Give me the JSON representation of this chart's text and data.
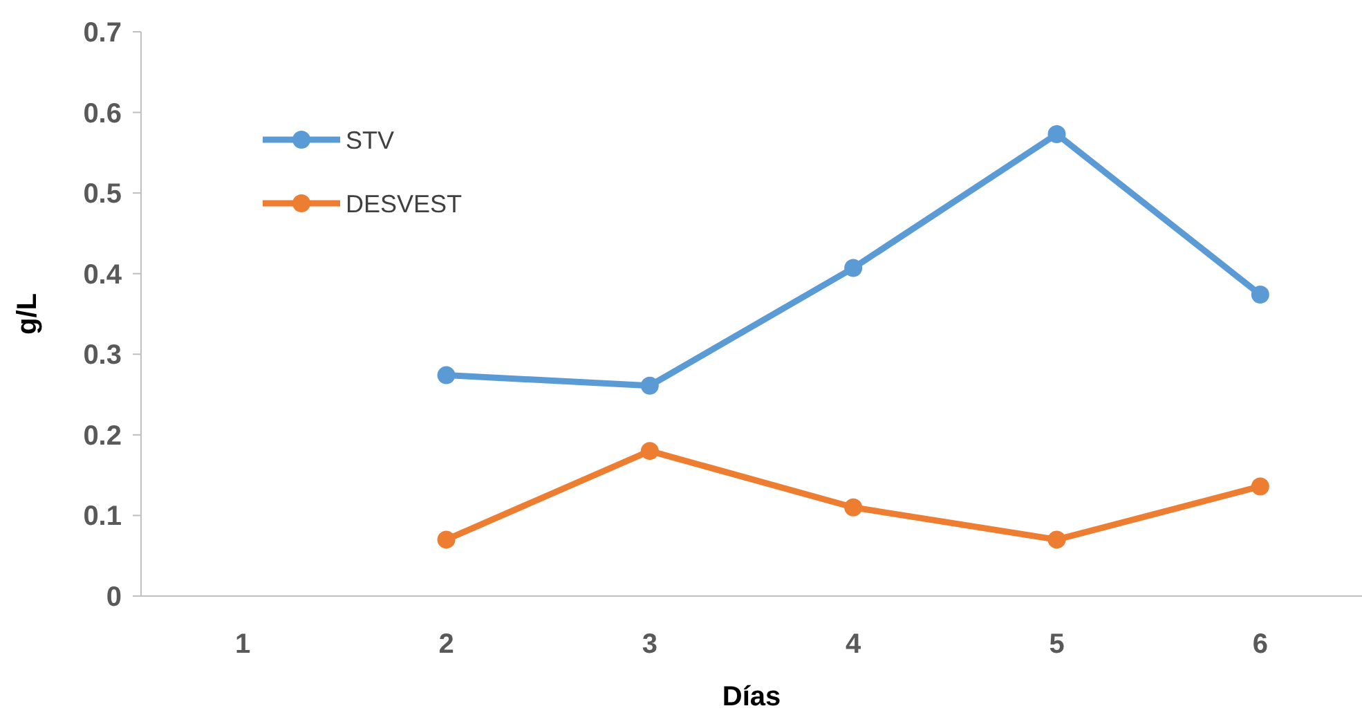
{
  "chart_data": {
    "type": "line",
    "xlabel": "Días",
    "ylabel": "g/L",
    "categories": [
      "1",
      "2",
      "3",
      "4",
      "5",
      "6"
    ],
    "series": [
      {
        "name": "STV",
        "color": "#5b9bd5",
        "values": [
          null,
          0.274,
          0.261,
          0.407,
          0.573,
          0.374
        ]
      },
      {
        "name": "DESVEST",
        "color": "#ed7d31",
        "values": [
          null,
          0.07,
          0.18,
          0.11,
          0.07,
          0.136
        ]
      }
    ],
    "ylim": [
      0,
      0.7
    ],
    "yticks": [
      0,
      0.1,
      0.2,
      0.3,
      0.4,
      0.5,
      0.6,
      0.7
    ],
    "grid": false,
    "legend": "top left",
    "marker": "circle",
    "line_style": "solid"
  }
}
